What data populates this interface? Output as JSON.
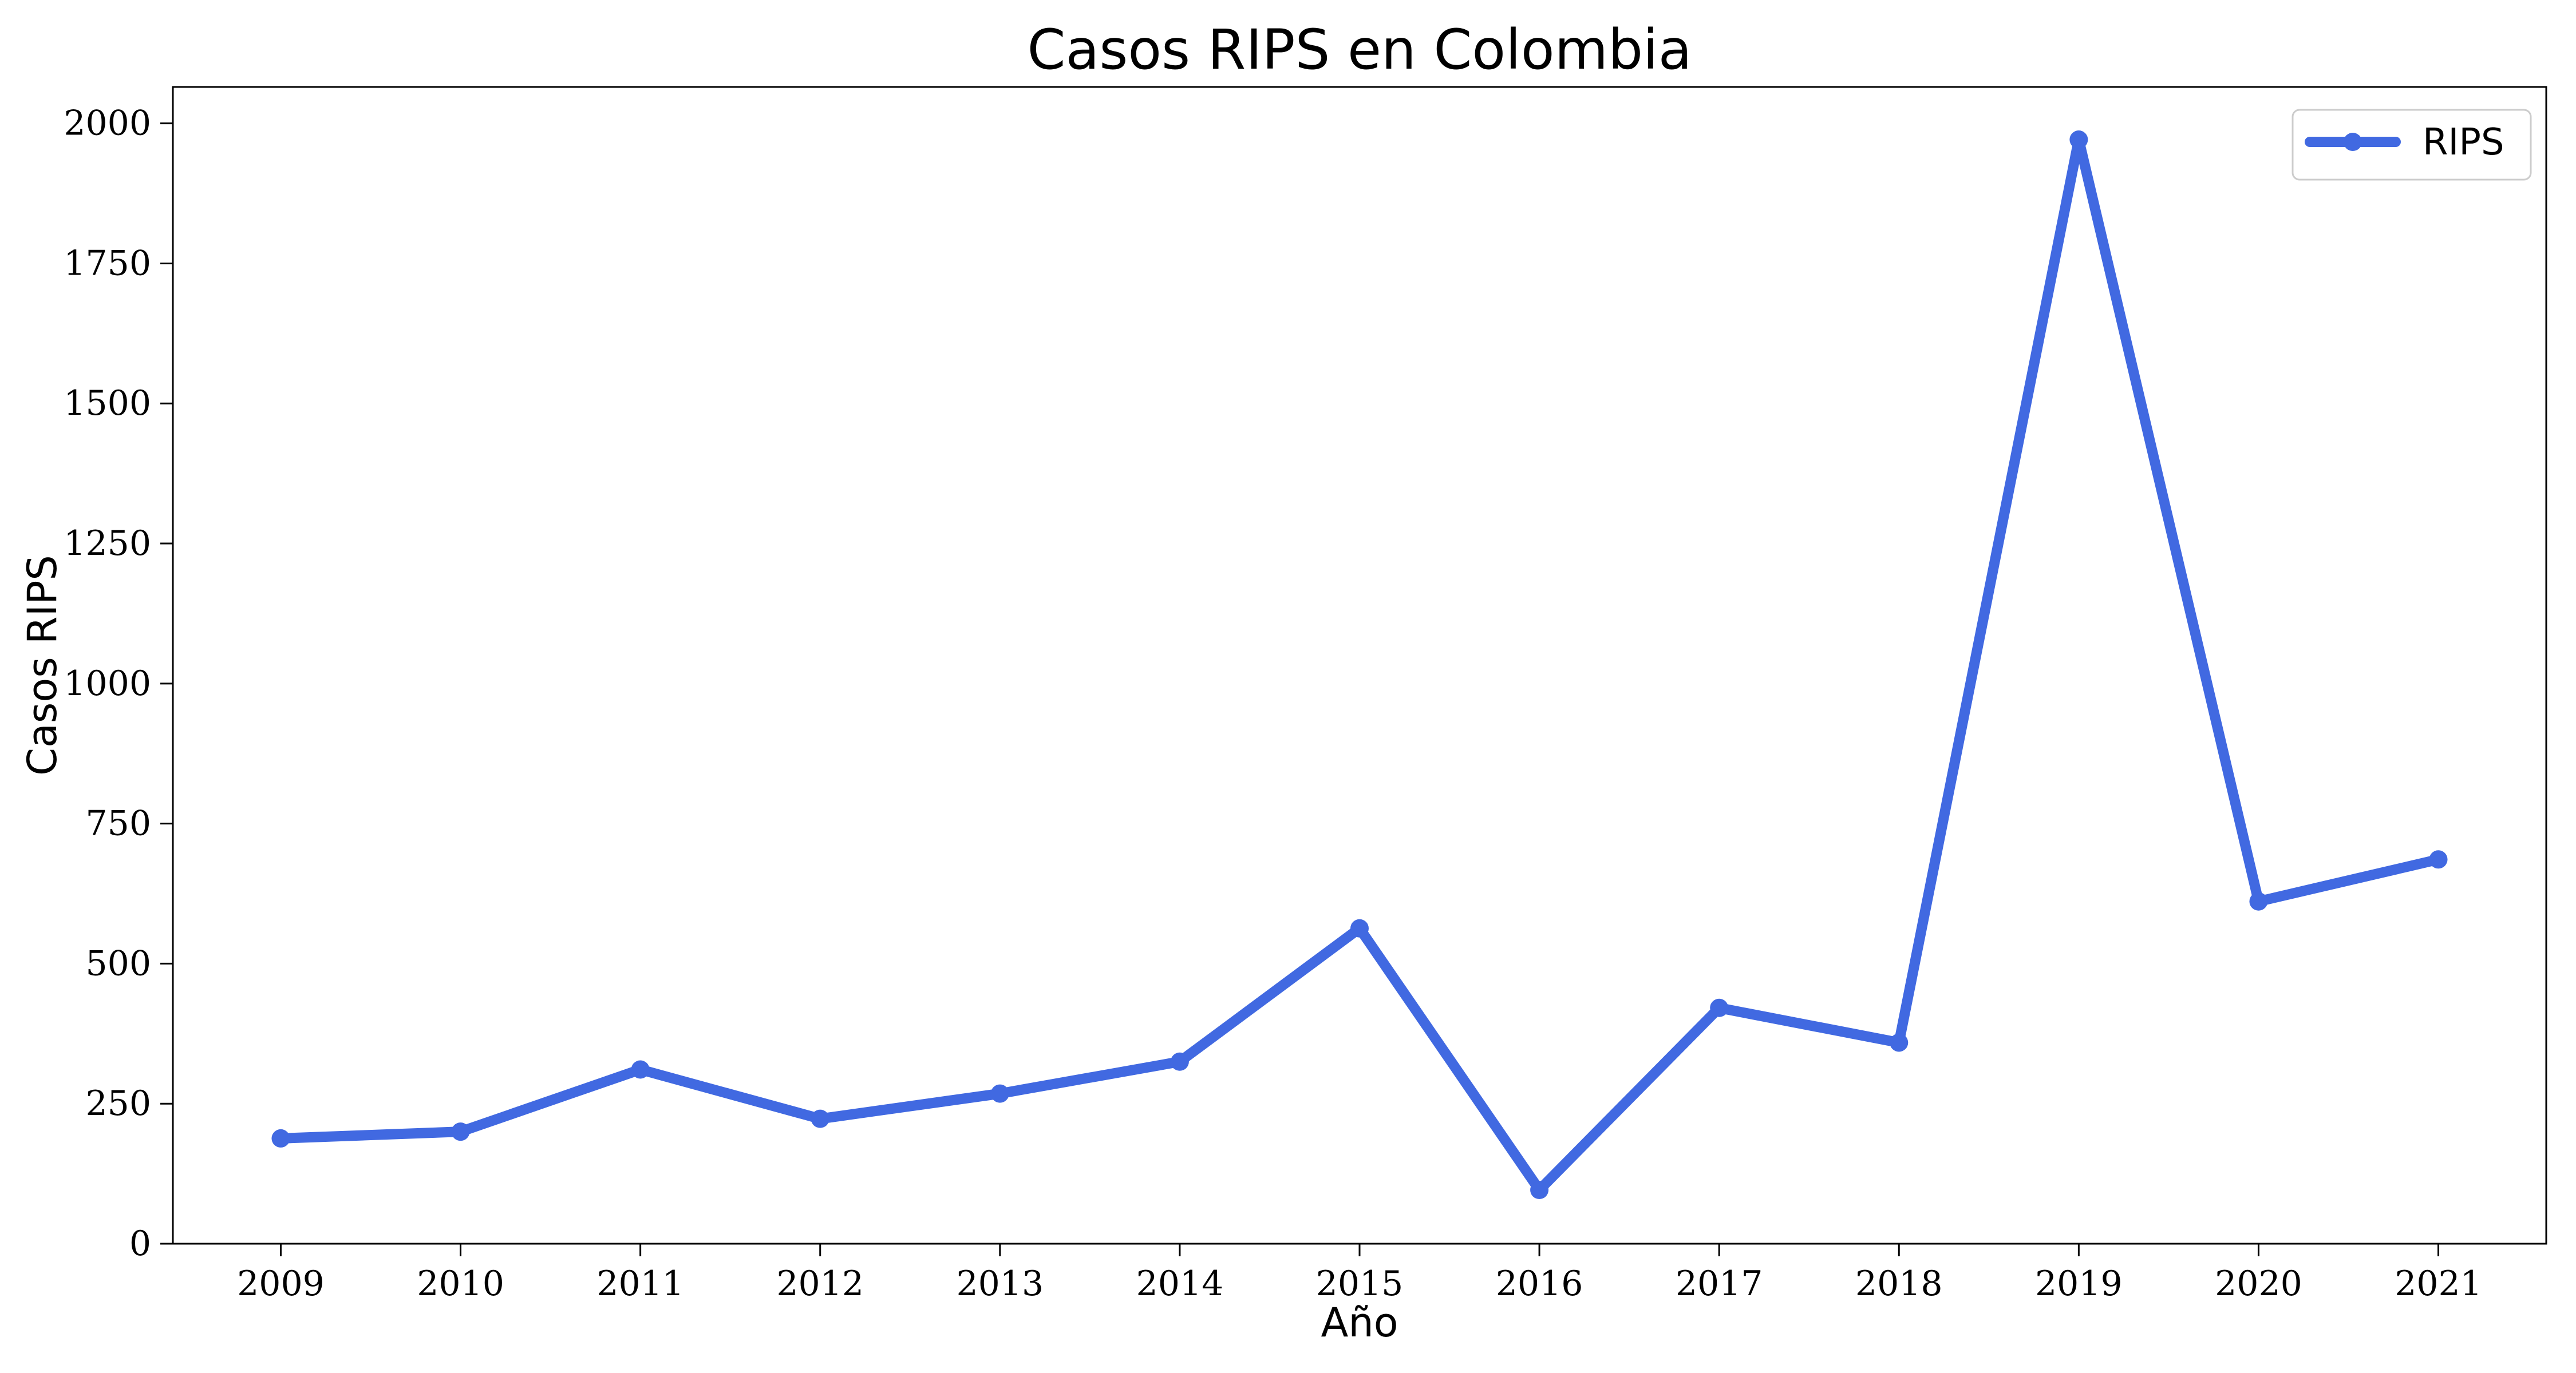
{
  "chart_data": {
    "type": "line",
    "title": "Casos RIPS en Colombia",
    "xlabel": "Año",
    "ylabel": "Casos RIPS",
    "x": [
      2009,
      2010,
      2011,
      2012,
      2013,
      2014,
      2015,
      2016,
      2017,
      2018,
      2019,
      2020,
      2021
    ],
    "x_tick_labels": [
      "2009",
      "2010",
      "2011",
      "2012",
      "2013",
      "2014",
      "2015",
      "2016",
      "2017",
      "2018",
      "2019",
      "2020",
      "2021"
    ],
    "series": [
      {
        "name": "RIPS",
        "color": "#4169e1",
        "values": [
          188,
          200,
          311,
          223,
          268,
          325,
          563,
          96,
          421,
          359,
          1971,
          611,
          686
        ]
      }
    ],
    "xlim": [
      2008.4,
      2021.6
    ],
    "ylim": [
      0,
      2065
    ],
    "y_ticks": [
      0,
      250,
      500,
      750,
      1000,
      1250,
      1500,
      1750,
      2000
    ],
    "y_tick_labels": [
      "0",
      "250",
      "500",
      "750",
      "1000",
      "1250",
      "1500",
      "1750",
      "2000"
    ],
    "grid": false,
    "legend_position": "top-right"
  }
}
